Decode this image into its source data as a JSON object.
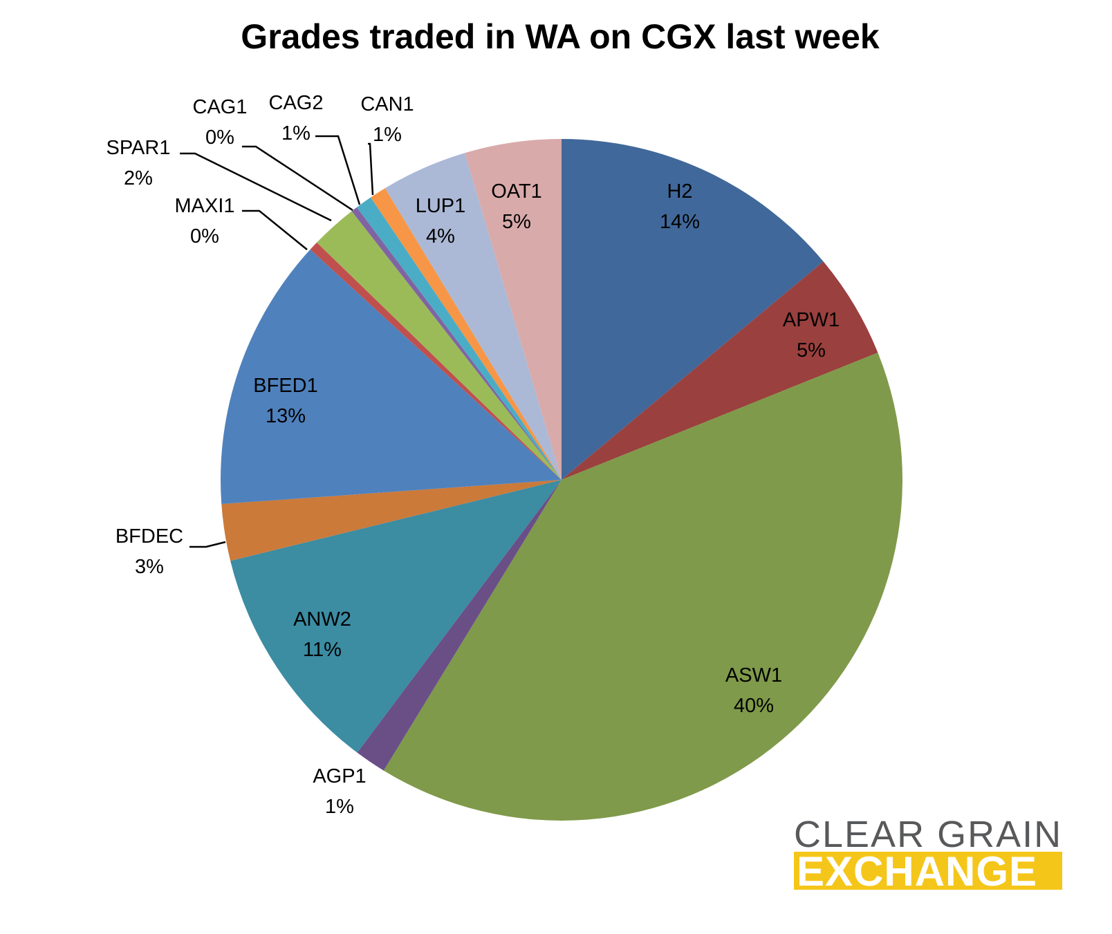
{
  "chart_data": {
    "type": "pie",
    "title": "Grades traded in WA on CGX last week",
    "slices": [
      {
        "label": "H2",
        "value": 14,
        "percent_label": "14%",
        "color": "#41689a"
      },
      {
        "label": "APW1",
        "value": 5,
        "percent_label": "5%",
        "color": "#9a403e"
      },
      {
        "label": "ASW1",
        "value": 40,
        "percent_label": "40%",
        "color": "#7f9a4a"
      },
      {
        "label": "AGP1",
        "value": 1.5,
        "percent_label": "1%",
        "color": "#6a4f87"
      },
      {
        "label": "ANW2",
        "value": 11,
        "percent_label": "11%",
        "color": "#3c8ca2"
      },
      {
        "label": "BFDEC",
        "value": 2.7,
        "percent_label": "3%",
        "color": "#cb7a3a"
      },
      {
        "label": "BFED1",
        "value": 13,
        "percent_label": "13%",
        "color": "#4f81bd"
      },
      {
        "label": "MAXI1",
        "value": 0.45,
        "percent_label": "0%",
        "color": "#c0504d"
      },
      {
        "label": "SPAR1",
        "value": 2.2,
        "percent_label": "2%",
        "color": "#9bbb59"
      },
      {
        "label": "CAG1",
        "value": 0.3,
        "percent_label": "0%",
        "color": "#8064a2"
      },
      {
        "label": "CAG2",
        "value": 0.8,
        "percent_label": "1%",
        "color": "#4bacc6"
      },
      {
        "label": "CAN1",
        "value": 0.8,
        "percent_label": "1%",
        "color": "#f79646"
      },
      {
        "label": "LUP1",
        "value": 4.1,
        "percent_label": "4%",
        "color": "#abb9d6"
      },
      {
        "label": "OAT1",
        "value": 4.6,
        "percent_label": "5%",
        "color": "#d9aaaa"
      }
    ]
  },
  "logo": {
    "line1": "CLEAR GRAIN",
    "line2": "EXCHANGE",
    "band_color": "#f5c61a"
  }
}
